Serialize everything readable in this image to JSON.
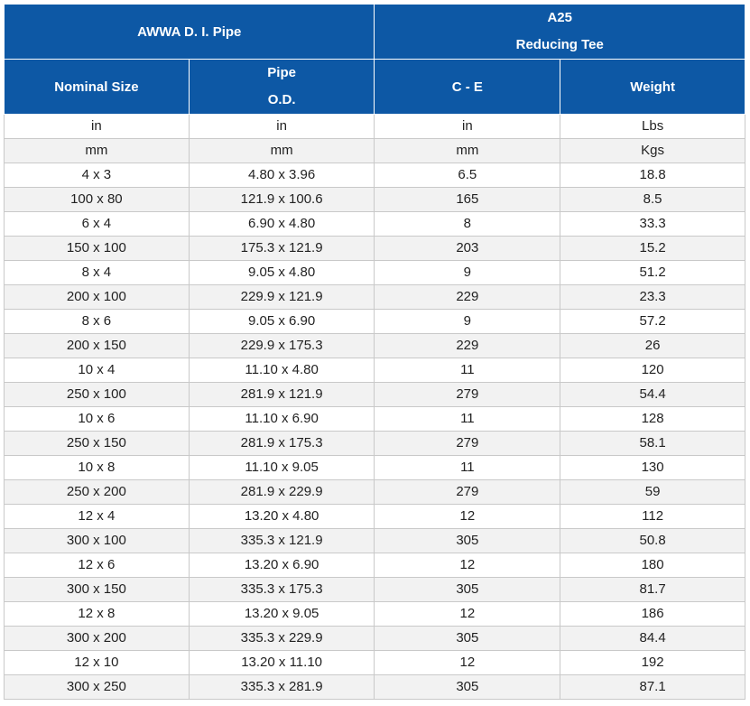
{
  "header": {
    "group_left": "AWWA D. I. Pipe",
    "group_right_line1": "A25",
    "group_right_line2": "Reducing Tee",
    "col_nominal": "Nominal Size",
    "col_pipe_line1": "Pipe",
    "col_pipe_line2": "O.D.",
    "col_ce": "C - E",
    "col_weight": "Weight"
  },
  "rows": [
    [
      "in",
      "in",
      "in",
      "Lbs"
    ],
    [
      "mm",
      "mm",
      "mm",
      "Kgs"
    ],
    [
      "4 x 3",
      "4.80 x 3.96",
      "6.5",
      "18.8"
    ],
    [
      "100 x 80",
      "121.9 x 100.6",
      "165",
      "8.5"
    ],
    [
      "6 x 4",
      "6.90 x 4.80",
      "8",
      "33.3"
    ],
    [
      "150 x 100",
      "175.3 x 121.9",
      "203",
      "15.2"
    ],
    [
      "8 x 4",
      "9.05 x 4.80",
      "9",
      "51.2"
    ],
    [
      "200 x 100",
      "229.9 x 121.9",
      "229",
      "23.3"
    ],
    [
      "8 x 6",
      "9.05 x 6.90",
      "9",
      "57.2"
    ],
    [
      "200 x 150",
      "229.9 x 175.3",
      "229",
      "26"
    ],
    [
      "10 x 4",
      "11.10 x 4.80",
      "11",
      "120"
    ],
    [
      "250 x 100",
      "281.9 x 121.9",
      "279",
      "54.4"
    ],
    [
      "10 x 6",
      "11.10 x 6.90",
      "11",
      "128"
    ],
    [
      "250 x 150",
      "281.9 x 175.3",
      "279",
      "58.1"
    ],
    [
      "10 x 8",
      "11.10 x 9.05",
      "11",
      "130"
    ],
    [
      "250 x 200",
      "281.9 x 229.9",
      "279",
      "59"
    ],
    [
      "12 x 4",
      "13.20 x 4.80",
      "12",
      "112"
    ],
    [
      "300 x 100",
      "335.3 x 121.9",
      "305",
      "50.8"
    ],
    [
      "12 x 6",
      "13.20 x 6.90",
      "12",
      "180"
    ],
    [
      "300 x 150",
      "335.3 x 175.3",
      "305",
      "81.7"
    ],
    [
      "12 x 8",
      "13.20 x 9.05",
      "12",
      "186"
    ],
    [
      "300 x 200",
      "335.3 x 229.9",
      "305",
      "84.4"
    ],
    [
      "12 x 10",
      "13.20 x 11.10",
      "12",
      "192"
    ],
    [
      "300 x 250",
      "335.3 x 281.9",
      "305",
      "87.1"
    ]
  ]
}
